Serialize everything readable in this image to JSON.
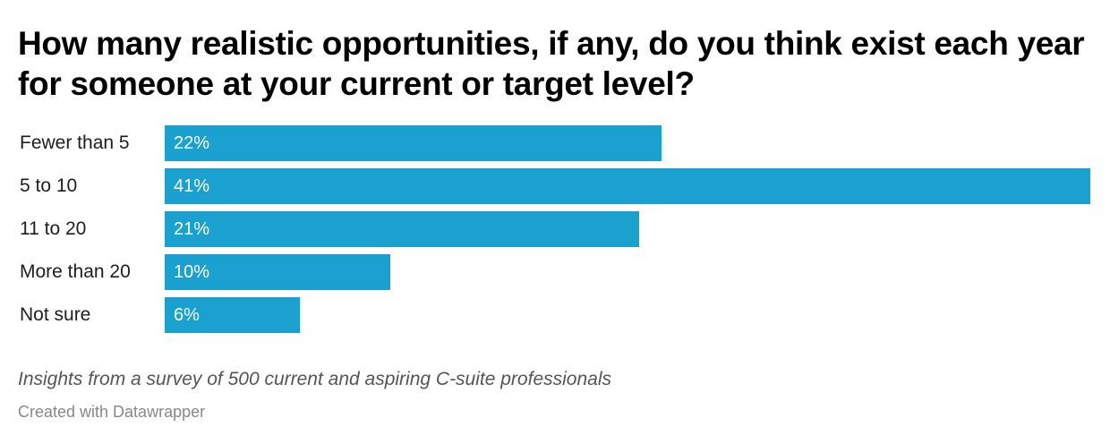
{
  "title": "How many realistic opportunities, if any, do you think exist each year for someone at your current or target level?",
  "notes": "Insights from a survey of 500 current and aspiring C-suite professionals",
  "credit": "Created with Datawrapper",
  "colors": {
    "bar": "#1aa1cf",
    "value_text": "#ffffff"
  },
  "chart_data": {
    "type": "bar",
    "orientation": "horizontal",
    "title": "How many realistic opportunities, if any, do you think exist each year for someone at your current or target level?",
    "subtitle": "",
    "xlabel": "",
    "ylabel": "",
    "categories": [
      "Fewer than 5",
      "5 to 10",
      "11 to 20",
      "More than 20",
      "Not sure"
    ],
    "values": [
      22,
      41,
      21,
      10,
      6
    ],
    "value_labels": [
      "22%",
      "41%",
      "21%",
      "10%",
      "6%"
    ],
    "unit": "%",
    "xlim": [
      0,
      41
    ],
    "grid": false,
    "legend": "none",
    "notes": "Insights from a survey of 500 current and aspiring C-suite professionals",
    "source": "Created with Datawrapper"
  }
}
